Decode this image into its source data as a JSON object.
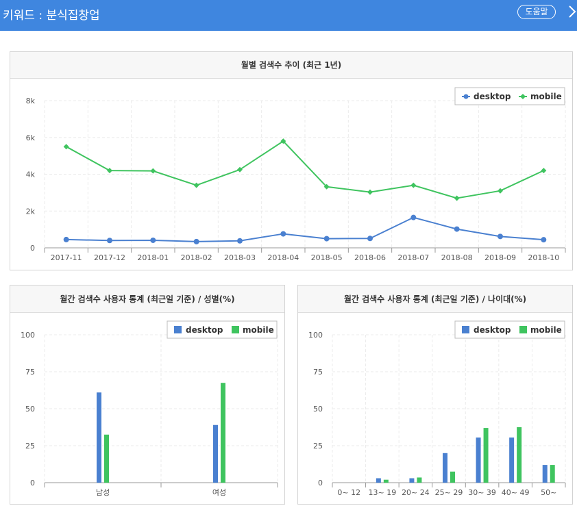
{
  "header": {
    "title": "키워드 : 분식집창업",
    "help_label": "도움말"
  },
  "legend": {
    "desktop": "desktop",
    "mobile": "mobile"
  },
  "colors": {
    "desktop": "#4a80d0",
    "mobile": "#3fc45f",
    "header": "#3f86df"
  },
  "chart_data": [
    {
      "type": "line",
      "title": "월별 검색수 추이 (최근 1년)",
      "categories": [
        "2017-11",
        "2017-12",
        "2018-01",
        "2018-02",
        "2018-03",
        "2018-04",
        "2018-05",
        "2018-06",
        "2018-07",
        "2018-08",
        "2018-09",
        "2018-10"
      ],
      "series": [
        {
          "name": "desktop",
          "values": [
            450,
            400,
            410,
            340,
            380,
            760,
            500,
            510,
            1650,
            1020,
            620,
            440
          ]
        },
        {
          "name": "mobile",
          "values": [
            5500,
            4200,
            4180,
            3400,
            4250,
            5800,
            3320,
            3030,
            3400,
            2700,
            3100,
            4200
          ]
        }
      ],
      "yticks": [
        "0",
        "2k",
        "4k",
        "6k",
        "8k"
      ],
      "ylim": [
        0,
        8000
      ],
      "legend_position": "top-right"
    },
    {
      "type": "bar",
      "title": "월간 검색수 사용자 통계 (최근일 기준) / 성별(%)",
      "categories": [
        "남성",
        "여성"
      ],
      "series": [
        {
          "name": "desktop",
          "values": [
            61,
            39
          ]
        },
        {
          "name": "mobile",
          "values": [
            32.5,
            67.5
          ]
        }
      ],
      "yticks": [
        "0",
        "25",
        "50",
        "75",
        "100"
      ],
      "ylim": [
        0,
        100
      ],
      "legend_position": "top-right"
    },
    {
      "type": "bar",
      "title": "월간 검색수 사용자 통계 (최근일 기준) / 나이대(%)",
      "categories": [
        "0~ 12",
        "13~ 19",
        "20~ 24",
        "25~ 29",
        "30~ 39",
        "40~ 49",
        "50~"
      ],
      "series": [
        {
          "name": "desktop",
          "values": [
            0,
            3,
            3,
            20,
            30.5,
            30.5,
            12
          ]
        },
        {
          "name": "mobile",
          "values": [
            0,
            2,
            3.5,
            7.5,
            37,
            37.5,
            12
          ]
        }
      ],
      "yticks": [
        "0",
        "25",
        "50",
        "75",
        "100"
      ],
      "ylim": [
        0,
        100
      ],
      "legend_position": "top-right"
    }
  ]
}
